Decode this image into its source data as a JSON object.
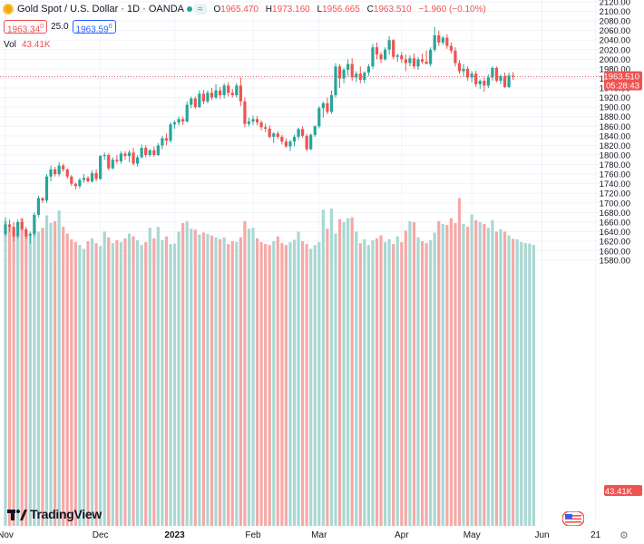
{
  "header": {
    "title": "Gold Spot / U.S. Dollar · 1D · OANDA",
    "toggle_label": "≈",
    "o_label": "O",
    "o_value": "1965.470",
    "h_label": "H",
    "h_value": "1973.160",
    "l_label": "L",
    "l_value": "1956.665",
    "c_label": "C",
    "c_value": "1963.510",
    "change": "−1.960 (−0.10%)"
  },
  "quotes": {
    "sell": "1963.34",
    "sell_sup": "0",
    "spread": "25.0",
    "buy": "1963.59",
    "buy_sup": "0"
  },
  "volume_label": {
    "name": "Vol",
    "value": "43.41K"
  },
  "brand": {
    "name": "TradingView"
  },
  "colors": {
    "up": "#26a69a",
    "down": "#ef5350",
    "vol_up": "#a8d8d3",
    "vol_down": "#f5a9a7",
    "price_tag_bg": "#ef5350",
    "volume_tag_bg": "#ef5350",
    "current_line": "#ef5350"
  },
  "icons": {
    "symbol": "gold-coin-icon",
    "settings": "gear-icon",
    "flag": "us-flag-icon"
  },
  "chart_data": {
    "type": "candlestick",
    "symbol": "Gold Spot / U.S. Dollar",
    "interval": "1D",
    "price_axis": {
      "ticks": [
        1580,
        1600,
        1620,
        1640,
        1660,
        1680,
        1700,
        1720,
        1740,
        1760,
        1780,
        1800,
        1820,
        1840,
        1860,
        1880,
        1900,
        1920,
        1940,
        1960,
        1980,
        2000,
        2020,
        2040,
        2060,
        2080,
        2100,
        2120
      ]
    },
    "time_axis": {
      "labels": [
        "Nov",
        "Dec",
        "2023",
        "Feb",
        "Mar",
        "Apr",
        "May",
        "Jun",
        "21"
      ]
    },
    "last_price": "1963.510",
    "countdown": "05:28:43",
    "last_volume": "43.41K",
    "grid": true,
    "candles": [
      {
        "o": 1635,
        "h": 1670,
        "l": 1630,
        "c": 1655
      },
      {
        "o": 1655,
        "h": 1665,
        "l": 1640,
        "c": 1650
      },
      {
        "o": 1650,
        "h": 1660,
        "l": 1620,
        "c": 1630
      },
      {
        "o": 1630,
        "h": 1665,
        "l": 1625,
        "c": 1660
      },
      {
        "o": 1660,
        "h": 1668,
        "l": 1642,
        "c": 1645
      },
      {
        "o": 1645,
        "h": 1650,
        "l": 1625,
        "c": 1630
      },
      {
        "o": 1632,
        "h": 1640,
        "l": 1615,
        "c": 1635
      },
      {
        "o": 1635,
        "h": 1680,
        "l": 1630,
        "c": 1675
      },
      {
        "o": 1675,
        "h": 1715,
        "l": 1670,
        "c": 1710
      },
      {
        "o": 1710,
        "h": 1712,
        "l": 1700,
        "c": 1705
      },
      {
        "o": 1705,
        "h": 1760,
        "l": 1700,
        "c": 1755
      },
      {
        "o": 1755,
        "h": 1778,
        "l": 1745,
        "c": 1770
      },
      {
        "o": 1770,
        "h": 1775,
        "l": 1755,
        "c": 1760
      },
      {
        "o": 1760,
        "h": 1785,
        "l": 1755,
        "c": 1778
      },
      {
        "o": 1778,
        "h": 1782,
        "l": 1765,
        "c": 1770
      },
      {
        "o": 1770,
        "h": 1772,
        "l": 1750,
        "c": 1755
      },
      {
        "o": 1755,
        "h": 1758,
        "l": 1735,
        "c": 1740
      },
      {
        "o": 1740,
        "h": 1742,
        "l": 1728,
        "c": 1735
      },
      {
        "o": 1735,
        "h": 1752,
        "l": 1730,
        "c": 1748
      },
      {
        "o": 1748,
        "h": 1760,
        "l": 1742,
        "c": 1752
      },
      {
        "o": 1752,
        "h": 1756,
        "l": 1742,
        "c": 1745
      },
      {
        "o": 1745,
        "h": 1768,
        "l": 1742,
        "c": 1762
      },
      {
        "o": 1762,
        "h": 1770,
        "l": 1745,
        "c": 1750
      },
      {
        "o": 1750,
        "h": 1800,
        "l": 1748,
        "c": 1798
      },
      {
        "o": 1798,
        "h": 1805,
        "l": 1790,
        "c": 1800
      },
      {
        "o": 1800,
        "h": 1804,
        "l": 1768,
        "c": 1772
      },
      {
        "o": 1772,
        "h": 1795,
        "l": 1770,
        "c": 1790
      },
      {
        "o": 1790,
        "h": 1800,
        "l": 1782,
        "c": 1787
      },
      {
        "o": 1787,
        "h": 1808,
        "l": 1782,
        "c": 1803
      },
      {
        "o": 1803,
        "h": 1808,
        "l": 1790,
        "c": 1798
      },
      {
        "o": 1798,
        "h": 1810,
        "l": 1785,
        "c": 1805
      },
      {
        "o": 1805,
        "h": 1815,
        "l": 1778,
        "c": 1782
      },
      {
        "o": 1782,
        "h": 1800,
        "l": 1776,
        "c": 1795
      },
      {
        "o": 1795,
        "h": 1822,
        "l": 1793,
        "c": 1815
      },
      {
        "o": 1815,
        "h": 1820,
        "l": 1795,
        "c": 1800
      },
      {
        "o": 1800,
        "h": 1812,
        "l": 1796,
        "c": 1810
      },
      {
        "o": 1810,
        "h": 1818,
        "l": 1796,
        "c": 1800
      },
      {
        "o": 1800,
        "h": 1825,
        "l": 1798,
        "c": 1820
      },
      {
        "o": 1820,
        "h": 1840,
        "l": 1812,
        "c": 1835
      },
      {
        "o": 1835,
        "h": 1845,
        "l": 1820,
        "c": 1830
      },
      {
        "o": 1830,
        "h": 1868,
        "l": 1826,
        "c": 1864
      },
      {
        "o": 1864,
        "h": 1872,
        "l": 1855,
        "c": 1868
      },
      {
        "o": 1868,
        "h": 1880,
        "l": 1862,
        "c": 1875
      },
      {
        "o": 1875,
        "h": 1880,
        "l": 1863,
        "c": 1870
      },
      {
        "o": 1870,
        "h": 1912,
        "l": 1868,
        "c": 1905
      },
      {
        "o": 1905,
        "h": 1922,
        "l": 1898,
        "c": 1918
      },
      {
        "o": 1918,
        "h": 1922,
        "l": 1896,
        "c": 1900
      },
      {
        "o": 1900,
        "h": 1935,
        "l": 1898,
        "c": 1928
      },
      {
        "o": 1928,
        "h": 1936,
        "l": 1906,
        "c": 1912
      },
      {
        "o": 1912,
        "h": 1935,
        "l": 1908,
        "c": 1930
      },
      {
        "o": 1930,
        "h": 1940,
        "l": 1915,
        "c": 1920
      },
      {
        "o": 1920,
        "h": 1948,
        "l": 1917,
        "c": 1935
      },
      {
        "o": 1935,
        "h": 1942,
        "l": 1917,
        "c": 1925
      },
      {
        "o": 1925,
        "h": 1950,
        "l": 1918,
        "c": 1945
      },
      {
        "o": 1945,
        "h": 1952,
        "l": 1922,
        "c": 1930
      },
      {
        "o": 1930,
        "h": 1938,
        "l": 1920,
        "c": 1925
      },
      {
        "o": 1925,
        "h": 1950,
        "l": 1920,
        "c": 1945
      },
      {
        "o": 1945,
        "h": 1962,
        "l": 1902,
        "c": 1912
      },
      {
        "o": 1912,
        "h": 1920,
        "l": 1858,
        "c": 1865
      },
      {
        "o": 1865,
        "h": 1878,
        "l": 1860,
        "c": 1870
      },
      {
        "o": 1870,
        "h": 1882,
        "l": 1863,
        "c": 1875
      },
      {
        "o": 1875,
        "h": 1882,
        "l": 1862,
        "c": 1868
      },
      {
        "o": 1868,
        "h": 1872,
        "l": 1852,
        "c": 1858
      },
      {
        "o": 1858,
        "h": 1865,
        "l": 1848,
        "c": 1855
      },
      {
        "o": 1855,
        "h": 1862,
        "l": 1835,
        "c": 1838
      },
      {
        "o": 1838,
        "h": 1848,
        "l": 1825,
        "c": 1845
      },
      {
        "o": 1845,
        "h": 1850,
        "l": 1833,
        "c": 1838
      },
      {
        "o": 1838,
        "h": 1842,
        "l": 1822,
        "c": 1828
      },
      {
        "o": 1828,
        "h": 1835,
        "l": 1815,
        "c": 1818
      },
      {
        "o": 1818,
        "h": 1832,
        "l": 1808,
        "c": 1828
      },
      {
        "o": 1828,
        "h": 1842,
        "l": 1818,
        "c": 1838
      },
      {
        "o": 1838,
        "h": 1857,
        "l": 1832,
        "c": 1854
      },
      {
        "o": 1854,
        "h": 1860,
        "l": 1836,
        "c": 1840
      },
      {
        "o": 1840,
        "h": 1844,
        "l": 1808,
        "c": 1812
      },
      {
        "o": 1812,
        "h": 1845,
        "l": 1810,
        "c": 1842
      },
      {
        "o": 1842,
        "h": 1862,
        "l": 1838,
        "c": 1860
      },
      {
        "o": 1860,
        "h": 1902,
        "l": 1856,
        "c": 1898
      },
      {
        "o": 1898,
        "h": 1912,
        "l": 1878,
        "c": 1908
      },
      {
        "o": 1908,
        "h": 1920,
        "l": 1885,
        "c": 1890
      },
      {
        "o": 1890,
        "h": 1935,
        "l": 1886,
        "c": 1925
      },
      {
        "o": 1925,
        "h": 1992,
        "l": 1920,
        "c": 1985
      },
      {
        "o": 1985,
        "h": 1990,
        "l": 1940,
        "c": 1960
      },
      {
        "o": 1960,
        "h": 1982,
        "l": 1950,
        "c": 1978
      },
      {
        "o": 1978,
        "h": 2000,
        "l": 1965,
        "c": 1990
      },
      {
        "o": 1990,
        "h": 2002,
        "l": 1955,
        "c": 1962
      },
      {
        "o": 1962,
        "h": 1975,
        "l": 1952,
        "c": 1970
      },
      {
        "o": 1970,
        "h": 1985,
        "l": 1950,
        "c": 1957
      },
      {
        "o": 1957,
        "h": 1975,
        "l": 1950,
        "c": 1972
      },
      {
        "o": 1972,
        "h": 1990,
        "l": 1965,
        "c": 1985
      },
      {
        "o": 1985,
        "h": 2032,
        "l": 1980,
        "c": 2025
      },
      {
        "o": 2025,
        "h": 2035,
        "l": 2000,
        "c": 2010
      },
      {
        "o": 2010,
        "h": 2015,
        "l": 1992,
        "c": 2000
      },
      {
        "o": 2000,
        "h": 2025,
        "l": 1997,
        "c": 2020
      },
      {
        "o": 2020,
        "h": 2048,
        "l": 2010,
        "c": 2040
      },
      {
        "o": 2040,
        "h": 2042,
        "l": 2000,
        "c": 2005
      },
      {
        "o": 2005,
        "h": 2012,
        "l": 1995,
        "c": 2008
      },
      {
        "o": 2008,
        "h": 2015,
        "l": 1992,
        "c": 2000
      },
      {
        "o": 2000,
        "h": 2010,
        "l": 1975,
        "c": 1992
      },
      {
        "o": 1992,
        "h": 2008,
        "l": 1985,
        "c": 2002
      },
      {
        "o": 2002,
        "h": 2012,
        "l": 1980,
        "c": 1985
      },
      {
        "o": 1985,
        "h": 2005,
        "l": 1978,
        "c": 2000
      },
      {
        "o": 2000,
        "h": 2012,
        "l": 1990,
        "c": 1995
      },
      {
        "o": 1995,
        "h": 2018,
        "l": 1992,
        "c": 1990
      },
      {
        "o": 1990,
        "h": 2025,
        "l": 1985,
        "c": 2020
      },
      {
        "o": 2020,
        "h": 2068,
        "l": 2015,
        "c": 2050
      },
      {
        "o": 2050,
        "h": 2060,
        "l": 2028,
        "c": 2035
      },
      {
        "o": 2035,
        "h": 2048,
        "l": 2030,
        "c": 2045
      },
      {
        "o": 2045,
        "h": 2052,
        "l": 2022,
        "c": 2028
      },
      {
        "o": 2028,
        "h": 2035,
        "l": 2012,
        "c": 2018
      },
      {
        "o": 2018,
        "h": 2025,
        "l": 1985,
        "c": 1992
      },
      {
        "o": 1992,
        "h": 1998,
        "l": 1970,
        "c": 1975
      },
      {
        "o": 1975,
        "h": 1990,
        "l": 1965,
        "c": 1980
      },
      {
        "o": 1980,
        "h": 1985,
        "l": 1955,
        "c": 1962
      },
      {
        "o": 1962,
        "h": 1975,
        "l": 1952,
        "c": 1970
      },
      {
        "o": 1970,
        "h": 1976,
        "l": 1942,
        "c": 1948
      },
      {
        "o": 1948,
        "h": 1958,
        "l": 1938,
        "c": 1955
      },
      {
        "o": 1955,
        "h": 1962,
        "l": 1932,
        "c": 1945
      },
      {
        "o": 1945,
        "h": 1968,
        "l": 1940,
        "c": 1962
      },
      {
        "o": 1962,
        "h": 1985,
        "l": 1955,
        "c": 1982
      },
      {
        "o": 1982,
        "h": 1985,
        "l": 1952,
        "c": 1955
      },
      {
        "o": 1955,
        "h": 1968,
        "l": 1948,
        "c": 1965
      },
      {
        "o": 1965,
        "h": 1972,
        "l": 1940,
        "c": 1942
      },
      {
        "o": 1942,
        "h": 1972,
        "l": 1940,
        "c": 1966
      },
      {
        "o": 1965.47,
        "h": 1973.16,
        "l": 1956.665,
        "c": 1963.51
      }
    ],
    "volume": [
      1662,
      1650,
      1645,
      1630,
      1668,
      1642,
      1636,
      1655,
      1640,
      1648,
      1674,
      1658,
      1662,
      1684,
      1650,
      1636,
      1624,
      1618,
      1612,
      1604,
      1620,
      1626,
      1616,
      1610,
      1640,
      1628,
      1616,
      1622,
      1618,
      1626,
      1636,
      1630,
      1622,
      1612,
      1618,
      1648,
      1626,
      1650,
      1622,
      1630,
      1614,
      1615,
      1640,
      1658,
      1662,
      1646,
      1644,
      1634,
      1638,
      1635,
      1632,
      1628,
      1624,
      1628,
      1614,
      1620,
      1618,
      1628,
      1662,
      1646,
      1648,
      1626,
      1618,
      1614,
      1612,
      1620,
      1630,
      1616,
      1612,
      1618,
      1623,
      1640,
      1620,
      1614,
      1604,
      1612,
      1618,
      1686,
      1646,
      1688,
      1636,
      1666,
      1660,
      1668,
      1670,
      1640,
      1616,
      1624,
      1612,
      1622,
      1626,
      1632,
      1618,
      1624,
      1614,
      1630,
      1618,
      1642,
      1662,
      1660,
      1628,
      1620,
      1616,
      1622,
      1638,
      1662,
      1656,
      1654,
      1668,
      1658,
      1710,
      1656,
      1650,
      1676,
      1664,
      1660,
      1656,
      1648,
      1664,
      1640,
      1645,
      1640,
      1632,
      1625,
      1624,
      1618,
      1616,
      1615,
      1612
    ]
  }
}
